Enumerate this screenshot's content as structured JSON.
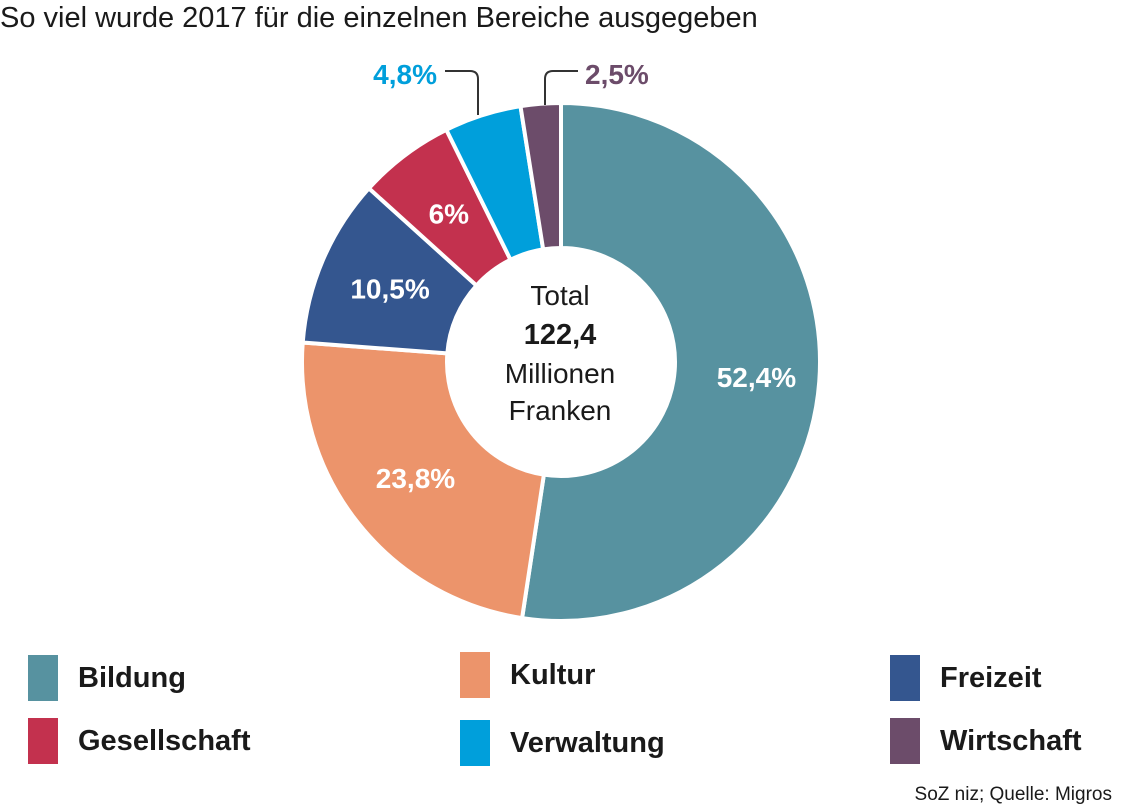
{
  "chart_data": {
    "type": "pie",
    "variant": "donut",
    "title": "So viel wurde 2017 für die einzelnen Bereiche ausgegeben",
    "categories": [
      "Bildung",
      "Kultur",
      "Freizeit",
      "Gesellschaft",
      "Verwaltung",
      "Wirtschaft"
    ],
    "values": [
      52.4,
      23.8,
      10.5,
      6,
      4.8,
      2.5
    ],
    "labels": [
      "52,4%",
      "23,8%",
      "10,5%",
      "6%",
      "4,8%",
      "2,5%"
    ],
    "colors": [
      "#5792a0",
      "#ec946b",
      "#34568f",
      "#c3314e",
      "#009fdb",
      "#6c4c6a"
    ],
    "center": {
      "line1": "Total",
      "value": "122,4",
      "line3": "Millionen",
      "line4": "Franken"
    },
    "legend_placement": "bottom",
    "source": "SoZ niz; Quelle: Migros"
  }
}
